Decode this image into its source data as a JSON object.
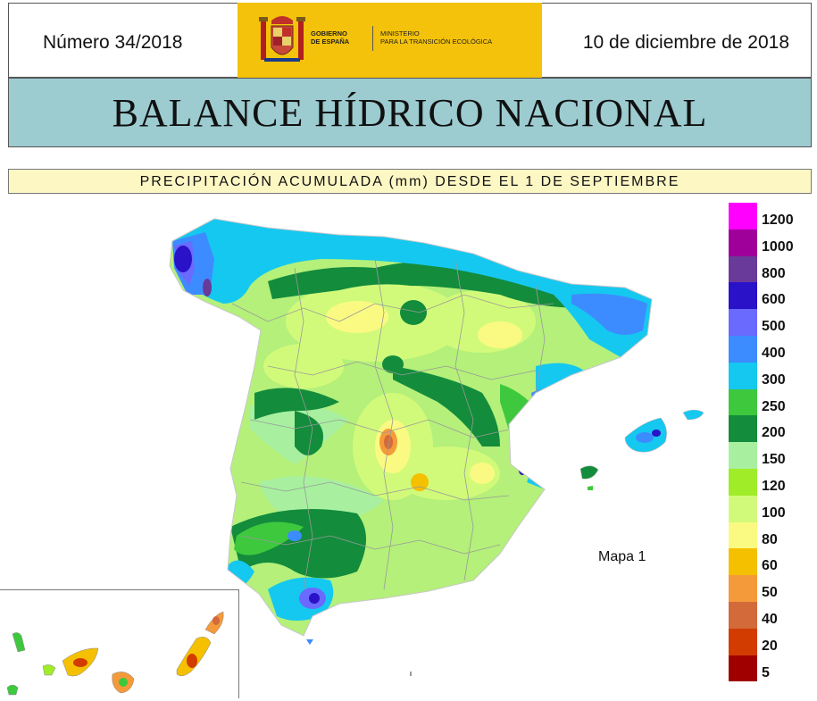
{
  "header": {
    "number": "Número 34/2018",
    "date": "10 de diciembre de 2018",
    "gobierno": "GOBIERNO\nDE ESPAÑA",
    "ministerio": "MINISTERIO\nPARA LA TRANSICIÓN ECOLÓGICA"
  },
  "title": "BALANCE HÍDRICO NACIONAL",
  "subtitle": "PRECIPITACIÓN ACUMULADA (mm) DESDE EL 1 DE SEPTIEMBRE",
  "map": {
    "label": "Mapa 1",
    "land_base_color": "#b4f07a"
  },
  "legend": {
    "colors": [
      "#ff00ff",
      "#a0009a",
      "#6a3a9a",
      "#2a12c8",
      "#6a6aff",
      "#3c8cff",
      "#15c8f0",
      "#3ec83e",
      "#138c3c",
      "#a8f0a0",
      "#a0ec28",
      "#d2fa7a",
      "#fafa82",
      "#f5c000",
      "#f59a3a",
      "#d26a3a",
      "#d23c00",
      "#a00000"
    ],
    "labels": [
      "1200",
      "1000",
      "800",
      "600",
      "500",
      "400",
      "300",
      "250",
      "200",
      "150",
      "120",
      "100",
      "80",
      "60",
      "50",
      "40",
      "20",
      "5"
    ]
  }
}
